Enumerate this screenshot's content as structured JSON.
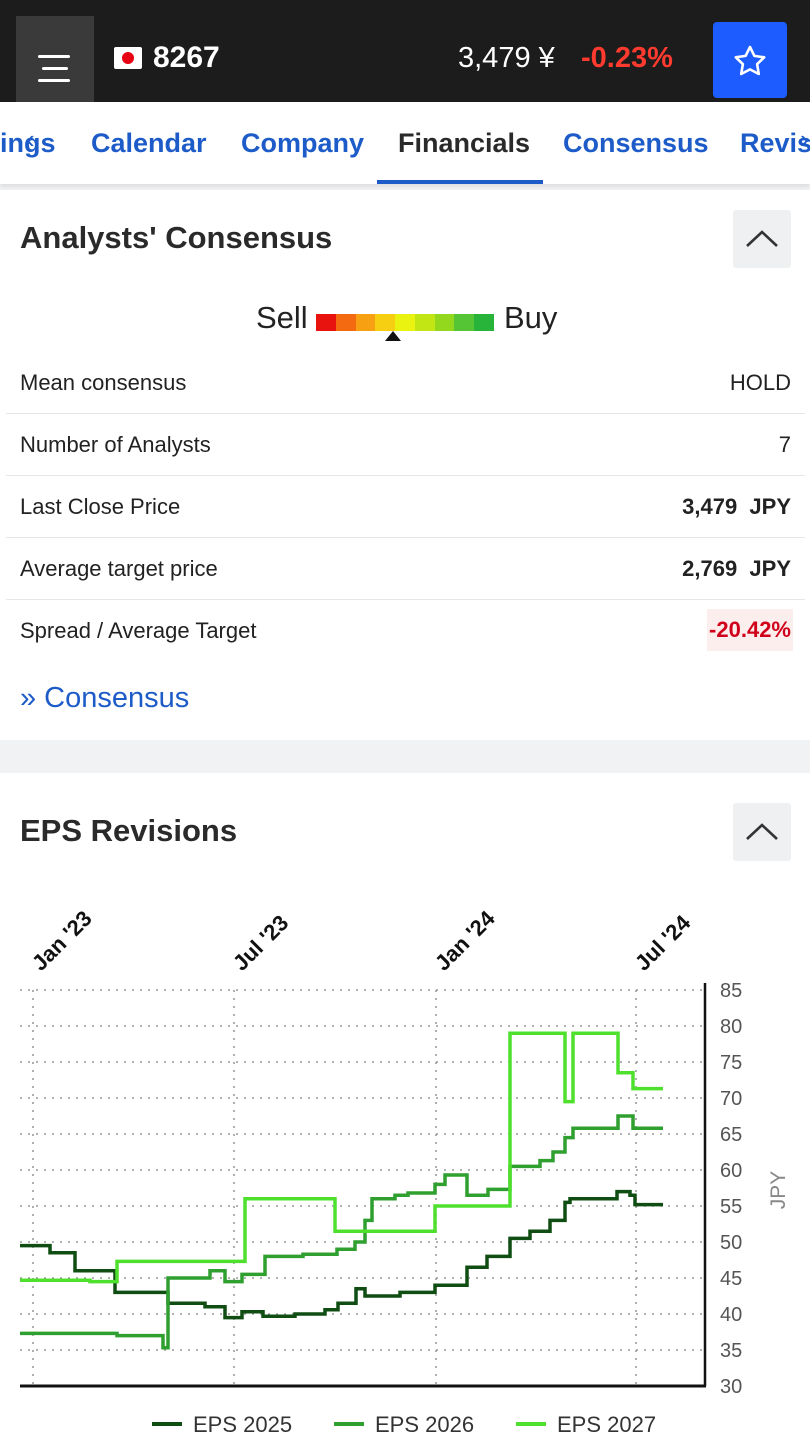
{
  "header": {
    "ticker": "8267",
    "price": "3,479 ¥",
    "change": "-0.23%"
  },
  "tabs": [
    {
      "label": "ings",
      "active": false
    },
    {
      "label": "Calendar",
      "active": false
    },
    {
      "label": "Company",
      "active": false
    },
    {
      "label": "Financials",
      "active": true
    },
    {
      "label": "Consensus",
      "active": false
    },
    {
      "label": "Revis",
      "active": false
    }
  ],
  "consensus_card": {
    "title": "Analysts' Consensus",
    "gauge": {
      "left_label": "Sell",
      "right_label": "Buy",
      "colors": [
        "#e8130f",
        "#f36a10",
        "#f7a012",
        "#f7cf12",
        "#eaf20f",
        "#c2e614",
        "#94d81e",
        "#55c435",
        "#28b33a"
      ],
      "indicator_fraction": 0.43
    },
    "rows": [
      {
        "label": "Mean consensus",
        "value": "HOLD",
        "bold": false
      },
      {
        "label": "Number of Analysts",
        "value": "7",
        "bold": false
      },
      {
        "label": "Last Close Price",
        "value": "3,479  JPY",
        "bold": true
      },
      {
        "label": "Average target price",
        "value": "2,769  JPY",
        "bold": true
      },
      {
        "label": "Spread / Average Target",
        "value": "-20.42%",
        "negative": true
      }
    ],
    "link": "» Consensus"
  },
  "eps_card": {
    "title": "EPS Revisions"
  },
  "chart_data": {
    "type": "line",
    "title": "EPS Revisions",
    "x_tick_labels": [
      "Jan '23",
      "Jul '23",
      "Jan '24",
      "Jul '24"
    ],
    "y_ticks": [
      30,
      35,
      40,
      45,
      50,
      55,
      60,
      65,
      70,
      75,
      80,
      85
    ],
    "ylim": [
      30,
      85
    ],
    "y_axis_label": "JPY",
    "grid": true,
    "legend_position": "bottom",
    "series": [
      {
        "name": "EPS 2025",
        "color": "#0f4d12",
        "points": [
          [
            0,
            49.5
          ],
          [
            30,
            49.5
          ],
          [
            30,
            48.5
          ],
          [
            55,
            48.5
          ],
          [
            55,
            46
          ],
          [
            95,
            46
          ],
          [
            95,
            43
          ],
          [
            148,
            43
          ],
          [
            148,
            41.5
          ],
          [
            185,
            41.5
          ],
          [
            185,
            41
          ],
          [
            205,
            41
          ],
          [
            205,
            39.5
          ],
          [
            222,
            39.5
          ],
          [
            222,
            40.3
          ],
          [
            243,
            40.3
          ],
          [
            243,
            39.7
          ],
          [
            275,
            39.7
          ],
          [
            275,
            40
          ],
          [
            305,
            40
          ],
          [
            305,
            40.6
          ],
          [
            318,
            40.6
          ],
          [
            318,
            41.5
          ],
          [
            336,
            41.5
          ],
          [
            336,
            43.5
          ],
          [
            345,
            43.5
          ],
          [
            345,
            42.5
          ],
          [
            380,
            42.5
          ],
          [
            380,
            43
          ],
          [
            415,
            43
          ],
          [
            415,
            44
          ],
          [
            447,
            44
          ],
          [
            447,
            46.5
          ],
          [
            467,
            46.5
          ],
          [
            467,
            48
          ],
          [
            490,
            48
          ],
          [
            490,
            50.5
          ],
          [
            510,
            50.5
          ],
          [
            510,
            51.5
          ],
          [
            530,
            51.5
          ],
          [
            530,
            53
          ],
          [
            545,
            53
          ],
          [
            545,
            55.5
          ],
          [
            550,
            55.5
          ],
          [
            550,
            56
          ],
          [
            597,
            56
          ],
          [
            597,
            57
          ],
          [
            610,
            57
          ],
          [
            610,
            56.5
          ],
          [
            615,
            56.5
          ],
          [
            615,
            55.2
          ],
          [
            643,
            55.2
          ]
        ]
      },
      {
        "name": "EPS 2026",
        "color": "#2f9f2f",
        "points": [
          [
            0,
            37.3
          ],
          [
            97,
            37.3
          ],
          [
            97,
            37
          ],
          [
            143,
            37
          ],
          [
            143,
            35.3
          ],
          [
            148,
            35.3
          ],
          [
            148,
            45
          ],
          [
            190,
            45
          ],
          [
            190,
            46
          ],
          [
            205,
            46
          ],
          [
            205,
            44.5
          ],
          [
            222,
            44.5
          ],
          [
            222,
            45.5
          ],
          [
            245,
            45.5
          ],
          [
            245,
            48
          ],
          [
            283,
            48
          ],
          [
            283,
            48.3
          ],
          [
            317,
            48.3
          ],
          [
            317,
            49
          ],
          [
            335,
            49
          ],
          [
            335,
            50
          ],
          [
            345,
            50
          ],
          [
            345,
            53
          ],
          [
            352,
            53
          ],
          [
            352,
            56
          ],
          [
            375,
            56
          ],
          [
            375,
            56.5
          ],
          [
            388,
            56.5
          ],
          [
            388,
            56.8
          ],
          [
            415,
            56.8
          ],
          [
            415,
            58
          ],
          [
            425,
            58
          ],
          [
            425,
            59.3
          ],
          [
            447,
            59.3
          ],
          [
            447,
            56.5
          ],
          [
            468,
            56.5
          ],
          [
            468,
            57.3
          ],
          [
            490,
            57.3
          ],
          [
            490,
            60.5
          ],
          [
            520,
            60.5
          ],
          [
            520,
            61.3
          ],
          [
            533,
            61.3
          ],
          [
            533,
            62.5
          ],
          [
            545,
            62.5
          ],
          [
            545,
            64.5
          ],
          [
            553,
            64.5
          ],
          [
            553,
            65.8
          ],
          [
            598,
            65.8
          ],
          [
            598,
            67.5
          ],
          [
            613,
            67.5
          ],
          [
            613,
            65.8
          ],
          [
            643,
            65.8
          ]
        ]
      },
      {
        "name": "EPS 2027",
        "color": "#4fe02e",
        "points": [
          [
            0,
            44.7
          ],
          [
            70,
            44.7
          ],
          [
            70,
            44.5
          ],
          [
            97,
            44.5
          ],
          [
            97,
            47.3
          ],
          [
            225,
            47.3
          ],
          [
            225,
            56
          ],
          [
            315,
            56
          ],
          [
            315,
            51.5
          ],
          [
            415,
            51.5
          ],
          [
            415,
            55
          ],
          [
            490,
            55
          ],
          [
            490,
            79
          ],
          [
            545,
            79
          ],
          [
            545,
            69.5
          ],
          [
            553,
            69.5
          ],
          [
            553,
            79
          ],
          [
            598,
            79
          ],
          [
            598,
            73.5
          ],
          [
            613,
            73.5
          ],
          [
            613,
            71.3
          ],
          [
            643,
            71.3
          ]
        ]
      }
    ]
  }
}
